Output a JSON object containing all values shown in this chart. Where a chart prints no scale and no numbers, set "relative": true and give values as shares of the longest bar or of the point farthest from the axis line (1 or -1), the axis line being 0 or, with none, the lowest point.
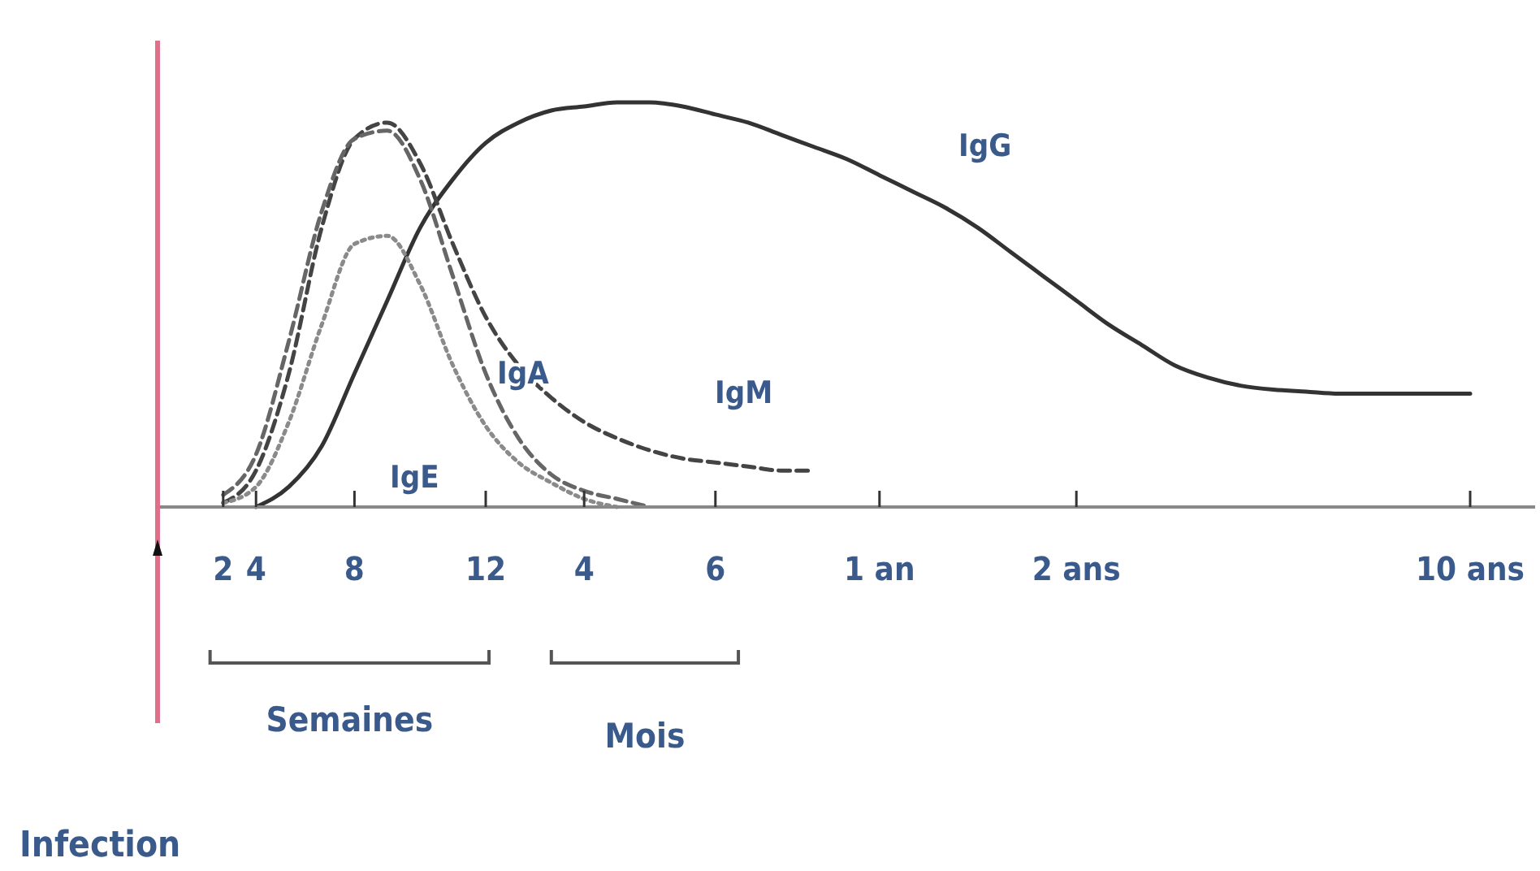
{
  "chart_data": {
    "type": "line",
    "relative": true,
    "categories": [
      null,
      null,
      "2",
      "4",
      null,
      null,
      "8",
      null,
      null,
      null,
      "12",
      null,
      null,
      "4",
      null,
      null,
      null,
      "6",
      null,
      null,
      null,
      null,
      "1 an",
      null,
      null,
      null,
      null,
      null,
      "2 ans",
      null,
      null,
      null,
      null,
      null,
      null,
      null,
      null,
      null,
      null,
      null,
      "10 ans"
    ],
    "series": [
      {
        "name": "IgG",
        "color": "#333333",
        "line_style": "solid",
        "values": [
          null,
          null,
          null,
          0,
          0.05,
          0.15,
          0.33,
          0.51,
          0.69,
          0.81,
          0.9,
          0.95,
          0.98,
          0.99,
          1,
          1,
          0.99,
          0.97,
          0.95,
          0.92,
          0.89,
          0.86,
          0.82,
          0.78,
          0.74,
          0.69,
          0.63,
          0.57,
          0.51,
          0.45,
          0.4,
          0.35,
          0.32,
          0.3,
          0.29,
          0.285,
          0.28,
          0.28,
          0.28,
          0.28,
          0.28
        ]
      },
      {
        "name": "IgM",
        "color": "#444444",
        "line_style": "dashed",
        "values": [
          null,
          null,
          0.01,
          0.09,
          0.33,
          0.69,
          0.91,
          0.95,
          0.85,
          0.65,
          0.47,
          0.35,
          0.27,
          0.21,
          0.17,
          0.14,
          0.12,
          0.11,
          0.1,
          0.09,
          0.09,
          null,
          null,
          null,
          null,
          null,
          null,
          null,
          null,
          null,
          null,
          null,
          null,
          null,
          null,
          null,
          null,
          null,
          null,
          null,
          null
        ]
      },
      {
        "name": "IgA",
        "color": "#666666",
        "line_style": "dashed",
        "values": [
          null,
          null,
          0.03,
          0.13,
          0.41,
          0.73,
          0.91,
          0.93,
          0.81,
          0.57,
          0.33,
          0.17,
          0.08,
          0.04,
          0.02,
          0,
          null,
          null,
          null,
          null,
          null,
          null,
          null,
          null,
          null,
          null,
          null,
          null,
          null,
          null,
          null,
          null,
          null,
          null,
          null,
          null,
          null,
          null,
          null,
          null,
          null
        ]
      },
      {
        "name": "IgE",
        "color": "#8a8a8a",
        "line_style": "dotted",
        "values": [
          null,
          null,
          0.01,
          0.05,
          0.21,
          0.45,
          0.65,
          0.67,
          0.55,
          0.35,
          0.2,
          0.11,
          0.06,
          0.02,
          0,
          null,
          null,
          null,
          null,
          null,
          null,
          null,
          null,
          null,
          null,
          null,
          null,
          null,
          null,
          null,
          null,
          null,
          null,
          null,
          null,
          null,
          null,
          null,
          null,
          null,
          null
        ]
      }
    ],
    "annotations": [
      "Semaines",
      "Mois",
      "Infection"
    ],
    "grid": false,
    "legend": false
  }
}
